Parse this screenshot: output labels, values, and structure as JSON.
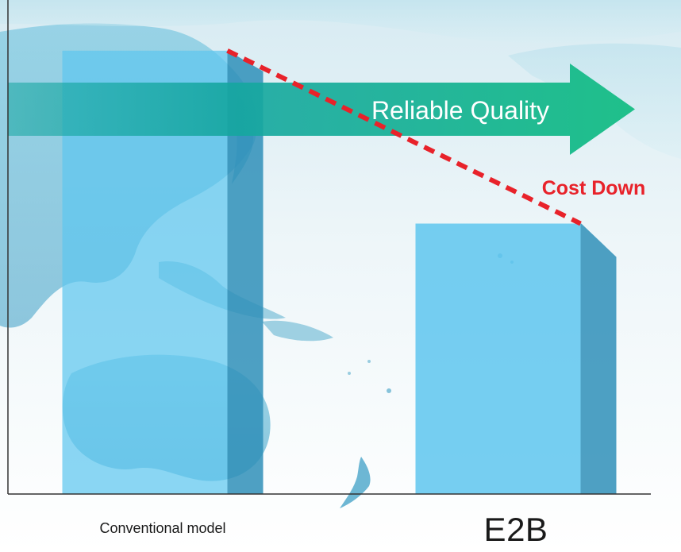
{
  "chart_data": {
    "type": "bar",
    "categories": [
      "Conventional model",
      "E2B"
    ],
    "values": [
      100,
      61
    ],
    "title": "",
    "xlabel": "",
    "ylabel": "",
    "ylim": [
      0,
      110
    ],
    "grid": false,
    "legend": "none",
    "annotations": {
      "arrow_label": "Reliable Quality",
      "trend_label": "Cost Down"
    }
  },
  "colors": {
    "bar_front": "#5ec6ee",
    "bar_side": "#2f8fb8",
    "arrow_start": "#15a6a0",
    "arrow_end": "#1fc08a",
    "trend_line": "#e8222a",
    "trend_text": "#e8222a",
    "axis": "#333333",
    "map_land": "#7cc6de",
    "map_land_dark": "#3e9fc5"
  }
}
